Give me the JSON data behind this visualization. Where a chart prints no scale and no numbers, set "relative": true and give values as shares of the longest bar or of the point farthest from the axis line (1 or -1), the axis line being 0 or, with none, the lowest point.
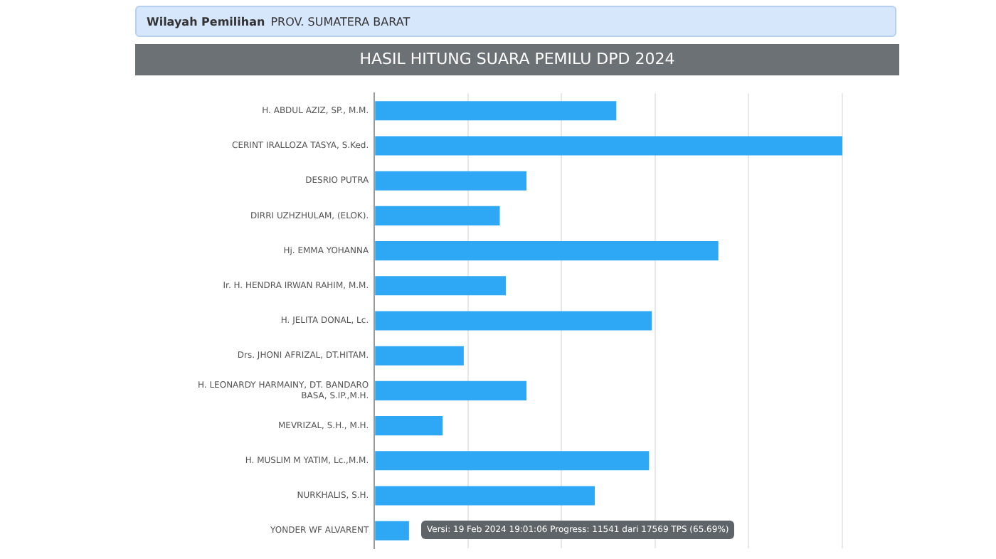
{
  "chart_data": {
    "type": "bar",
    "orientation": "horizontal",
    "relative": true,
    "title": "HASIL HITUNG SUARA PEMILU DPD 2024",
    "annotations": [
      "Wilayah Pemilihan",
      "PROV. SUMATERA BARAT",
      "Versi: 19 Feb 2024 19:01:06 Progress: 11541 dari 17569 TPS (65.69%)"
    ],
    "categories": [
      "H. ABDUL AZIZ, SP., M.M.",
      "CERINT IRALLOZA TASYA, S.Ked.",
      "DESRIO PUTRA",
      "DIRRI UZHZHULAM, (ELOK).",
      "Hj. EMMA YOHANNA",
      "Ir. H. HENDRA IRWAN RAHIM, M.M.",
      "H. JELITA DONAL, Lc.",
      "Drs. JHONI AFRIZAL, DT.HITAM.",
      "H. LEONARDY HARMAINY, DT. BANDARO BASA, S.IP.,M.H.",
      "MEVRIZAL, S.H., M.H.",
      "H. MUSLIM M YATIM, Lc.,M.M.",
      "NURKHALIS, S.H.",
      "YONDER WF ALVARENT"
    ],
    "values": [
      0.517,
      1,
      0.325,
      0.268,
      0.735,
      0.281,
      0.593,
      0.191,
      0.325,
      0.146,
      0.587,
      0.471,
      0.074
    ],
    "color": "#2ea7f5",
    "grid": "x",
    "legend": false
  }
}
